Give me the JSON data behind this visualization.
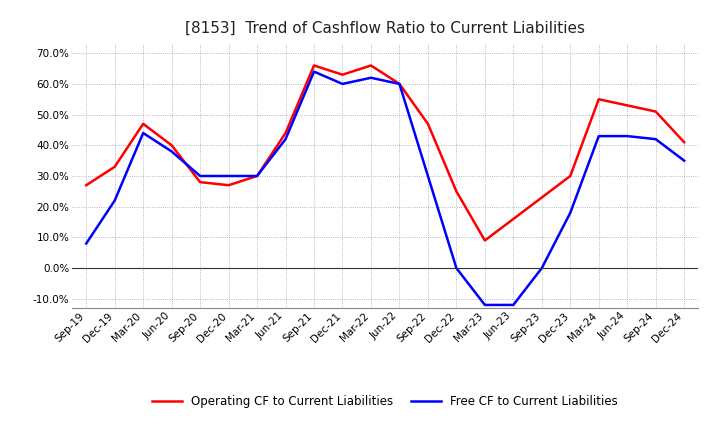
{
  "title": "[8153]  Trend of Cashflow Ratio to Current Liabilities",
  "x_labels": [
    "Sep-19",
    "Dec-19",
    "Mar-20",
    "Jun-20",
    "Sep-20",
    "Dec-20",
    "Mar-21",
    "Jun-21",
    "Sep-21",
    "Dec-21",
    "Mar-22",
    "Jun-22",
    "Sep-22",
    "Dec-22",
    "Mar-23",
    "Jun-23",
    "Sep-23",
    "Dec-23",
    "Mar-24",
    "Jun-24",
    "Sep-24",
    "Dec-24"
  ],
  "operating_cf_full": [
    0.27,
    0.33,
    0.47,
    0.4,
    0.28,
    0.27,
    0.3,
    0.44,
    0.66,
    0.63,
    0.66,
    0.6,
    0.47,
    0.25,
    0.09,
    0.16,
    0.23,
    0.3,
    0.55,
    0.53,
    0.51,
    0.41
  ],
  "free_cf_full": [
    0.08,
    0.22,
    0.44,
    0.38,
    0.3,
    0.3,
    0.3,
    0.42,
    0.64,
    0.6,
    0.62,
    0.6,
    0.3,
    0.0,
    -0.12,
    -0.12,
    0.0,
    0.18,
    0.43,
    0.43,
    0.42,
    0.35
  ],
  "ylim": [
    -0.13,
    0.73
  ],
  "yticks": [
    -0.1,
    0.0,
    0.1,
    0.2,
    0.3,
    0.4,
    0.5,
    0.6,
    0.7
  ],
  "operating_color": "#FF0000",
  "free_color": "#0000FF",
  "background_color": "#FFFFFF",
  "grid_color": "#8888AA",
  "legend_op": "Operating CF to Current Liabilities",
  "legend_free": "Free CF to Current Liabilities",
  "title_fontsize": 11,
  "tick_fontsize": 7.5,
  "legend_fontsize": 8.5
}
